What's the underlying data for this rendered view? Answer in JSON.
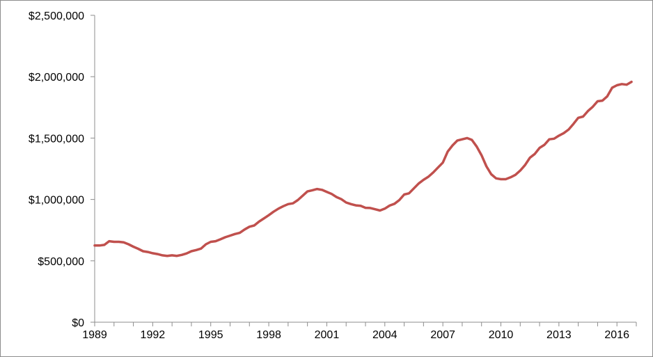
{
  "chart_data": {
    "type": "line",
    "title": "",
    "xlabel": "",
    "ylabel": "",
    "xlim": [
      1989,
      2017
    ],
    "ylim": [
      0,
      2500000
    ],
    "grid": false,
    "legend": "none",
    "x_ticks": [
      1989,
      1992,
      1995,
      1998,
      2001,
      2004,
      2007,
      2010,
      2013,
      2016
    ],
    "x_tick_labels": [
      "1989",
      "1992",
      "1995",
      "1998",
      "2001",
      "2004",
      "2007",
      "2010",
      "2013",
      "2016"
    ],
    "y_ticks": [
      0,
      500000,
      1000000,
      1500000,
      2000000,
      2500000
    ],
    "y_tick_labels": [
      "$0",
      "$500,000",
      "$1,000,000",
      "$1,500,000",
      "$2,000,000",
      "$2,500,000"
    ],
    "series": [
      {
        "color": "#c0504d",
        "x": [
          1989.0,
          1989.25,
          1989.5,
          1989.75,
          1990.0,
          1990.25,
          1990.5,
          1990.75,
          1991.0,
          1991.25,
          1991.5,
          1991.75,
          1992.0,
          1992.25,
          1992.5,
          1992.75,
          1993.0,
          1993.25,
          1993.5,
          1993.75,
          1994.0,
          1994.25,
          1994.5,
          1994.75,
          1995.0,
          1995.25,
          1995.5,
          1995.75,
          1996.0,
          1996.25,
          1996.5,
          1996.75,
          1997.0,
          1997.25,
          1997.5,
          1997.75,
          1998.0,
          1998.25,
          1998.5,
          1998.75,
          1999.0,
          1999.25,
          1999.5,
          1999.75,
          2000.0,
          2000.25,
          2000.5,
          2000.75,
          2001.0,
          2001.25,
          2001.5,
          2001.75,
          2002.0,
          2002.25,
          2002.5,
          2002.75,
          2003.0,
          2003.25,
          2003.5,
          2003.75,
          2004.0,
          2004.25,
          2004.5,
          2004.75,
          2005.0,
          2005.25,
          2005.5,
          2005.75,
          2006.0,
          2006.25,
          2006.5,
          2006.75,
          2007.0,
          2007.25,
          2007.5,
          2007.75,
          2008.0,
          2008.25,
          2008.5,
          2008.75,
          2009.0,
          2009.25,
          2009.5,
          2009.75,
          2010.0,
          2010.25,
          2010.5,
          2010.75,
          2011.0,
          2011.25,
          2011.5,
          2011.75,
          2012.0,
          2012.25,
          2012.5,
          2012.75,
          2013.0,
          2013.25,
          2013.5,
          2013.75,
          2014.0,
          2014.25,
          2014.5,
          2014.75,
          2015.0,
          2015.25,
          2015.5,
          2015.75,
          2016.0,
          2016.25,
          2016.5,
          2016.75
        ],
        "values": [
          625000,
          625000,
          630000,
          660000,
          655000,
          655000,
          650000,
          635000,
          615000,
          598000,
          578000,
          572000,
          562000,
          555000,
          545000,
          540000,
          545000,
          540000,
          548000,
          560000,
          578000,
          588000,
          600000,
          635000,
          655000,
          660000,
          675000,
          692000,
          705000,
          718000,
          728000,
          755000,
          778000,
          788000,
          820000,
          845000,
          872000,
          900000,
          925000,
          945000,
          962000,
          968000,
          995000,
          1030000,
          1065000,
          1075000,
          1085000,
          1078000,
          1062000,
          1045000,
          1020000,
          1002000,
          975000,
          962000,
          952000,
          948000,
          932000,
          930000,
          920000,
          910000,
          925000,
          950000,
          965000,
          995000,
          1040000,
          1050000,
          1090000,
          1130000,
          1160000,
          1185000,
          1220000,
          1260000,
          1300000,
          1390000,
          1440000,
          1480000,
          1490000,
          1500000,
          1485000,
          1430000,
          1360000,
          1270000,
          1205000,
          1172000,
          1165000,
          1165000,
          1180000,
          1200000,
          1235000,
          1280000,
          1340000,
          1370000,
          1420000,
          1445000,
          1490000,
          1495000,
          1520000,
          1540000,
          1570000,
          1615000,
          1665000,
          1675000,
          1720000,
          1755000,
          1800000,
          1805000,
          1840000,
          1910000,
          1930000,
          1940000,
          1935000,
          1958000
        ]
      }
    ]
  }
}
